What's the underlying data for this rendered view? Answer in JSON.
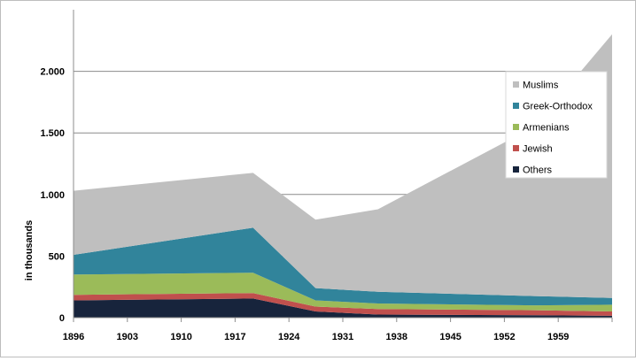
{
  "chart_data": {
    "type": "area",
    "stacked": true,
    "title": "",
    "xlabel": "",
    "ylabel": "in thousands",
    "x": [
      1896,
      1927,
      1935,
      1955,
      1965
    ],
    "x_ticks": [
      "1896",
      "1903",
      "1910",
      "1917",
      "1924",
      "1931",
      "1938",
      "1945",
      "1952",
      "1959"
    ],
    "xlim": [
      1896,
      1965
    ],
    "ylim": [
      0,
      2500
    ],
    "y_ticks": [
      {
        "value": 0,
        "label": "0"
      },
      {
        "value": 500,
        "label": "500"
      },
      {
        "value": 1000,
        "label": "1.000"
      },
      {
        "value": 1500,
        "label": "1.500"
      },
      {
        "value": 2000,
        "label": "2.000"
      }
    ],
    "grid": "horizontal",
    "legend_position": "right",
    "series_points": [
      {
        "name": "Others",
        "color": "#17243c",
        "points": [
          [
            1896,
            140
          ],
          [
            1919,
            155
          ],
          [
            1927,
            50
          ],
          [
            1935,
            25
          ],
          [
            1955,
            20
          ],
          [
            1965,
            15
          ]
        ]
      },
      {
        "name": "Jewish",
        "color": "#c0504d",
        "points": [
          [
            1896,
            45
          ],
          [
            1919,
            45
          ],
          [
            1927,
            40
          ],
          [
            1935,
            45
          ],
          [
            1955,
            40
          ],
          [
            1965,
            35
          ]
        ]
      },
      {
        "name": "Armenians",
        "color": "#9bbb59",
        "points": [
          [
            1896,
            165
          ],
          [
            1919,
            165
          ],
          [
            1927,
            50
          ],
          [
            1935,
            45
          ],
          [
            1955,
            40
          ],
          [
            1965,
            55
          ]
        ]
      },
      {
        "name": "Greek-Orthodox",
        "color": "#31849b",
        "points": [
          [
            1896,
            160
          ],
          [
            1919,
            365
          ],
          [
            1927,
            100
          ],
          [
            1935,
            95
          ],
          [
            1955,
            75
          ],
          [
            1965,
            55
          ]
        ]
      },
      {
        "name": "Muslims",
        "color": "#bfbfbf",
        "points": [
          [
            1896,
            520
          ],
          [
            1919,
            445
          ],
          [
            1927,
            555
          ],
          [
            1935,
            670
          ],
          [
            1955,
            1375
          ],
          [
            1965,
            2140
          ]
        ]
      }
    ]
  }
}
